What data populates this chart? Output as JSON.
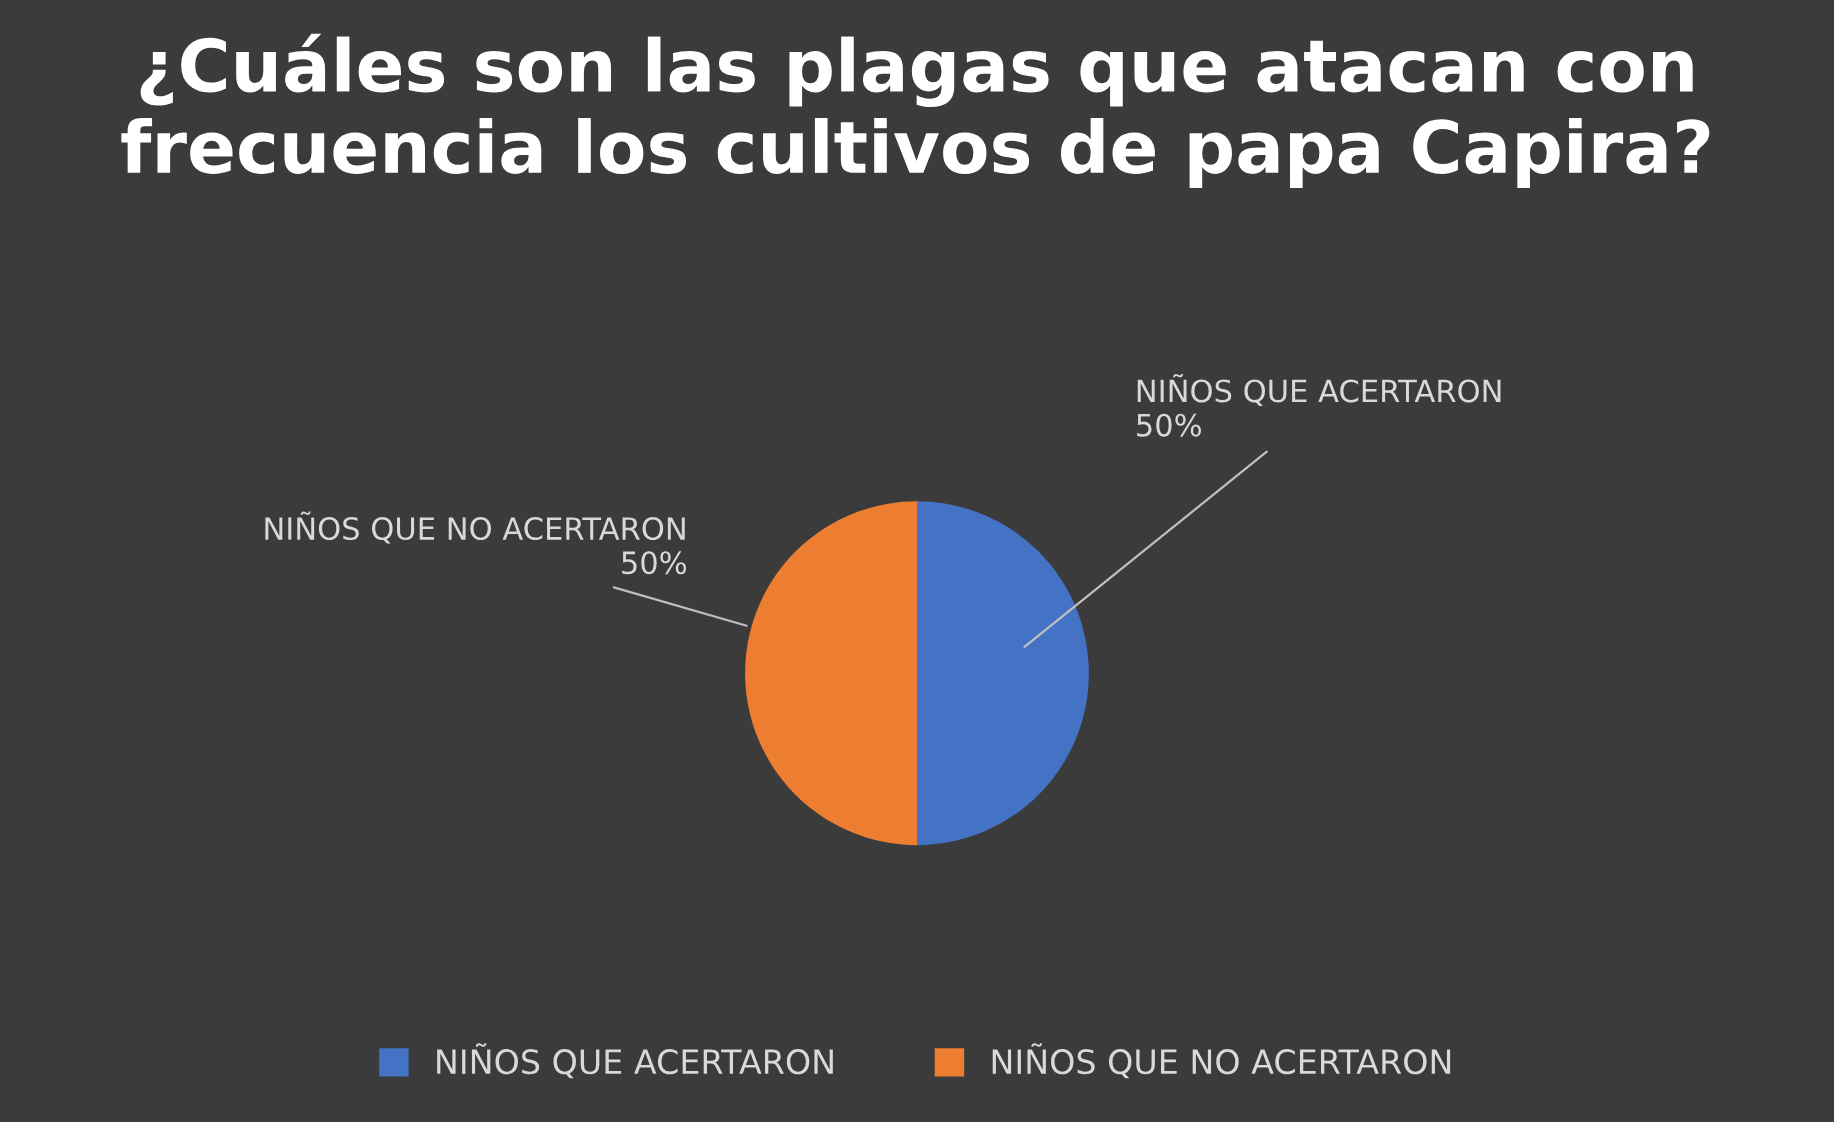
{
  "chart_data": {
    "type": "pie",
    "title": "¿Cuáles son las plagas que atacan con frecuencia los cultivos de papa Capira?",
    "categories": [
      "NIÑOS QUE ACERTARON",
      "NIÑOS QUE NO ACERTARON"
    ],
    "values": [
      50,
      50
    ],
    "colors": [
      "#4472c4",
      "#ed7d31"
    ],
    "value_labels": [
      "50%",
      "50%"
    ],
    "legend": "bottom"
  }
}
